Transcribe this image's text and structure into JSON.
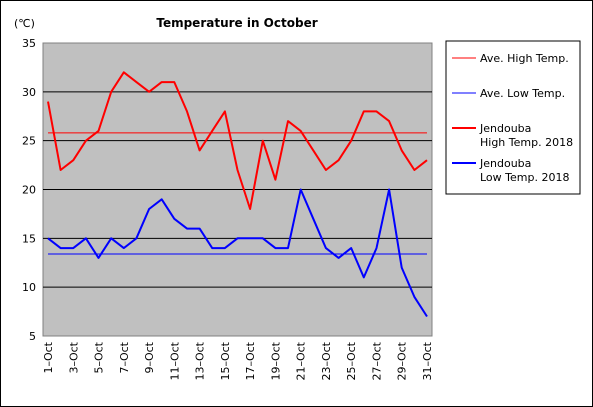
{
  "chart_data": {
    "type": "line",
    "title": "Temperature in October",
    "unit_label": "(℃)",
    "ylim": [
      5,
      35
    ],
    "y_ticks": [
      "5",
      "10",
      "15",
      "20",
      "25",
      "30",
      "35"
    ],
    "x_ticks": [
      "1–Oct",
      "3–Oct",
      "5–Oct",
      "7–Oct",
      "9–Oct",
      "11–Oct",
      "13–Oct",
      "15–Oct",
      "17–Oct",
      "19–Oct",
      "21–Oct",
      "23–Oct",
      "25–Oct",
      "27–Oct",
      "29–Oct",
      "31–Oct"
    ],
    "x_tick_days": [
      1,
      3,
      5,
      7,
      9,
      11,
      13,
      15,
      17,
      19,
      21,
      23,
      25,
      27,
      29,
      31
    ],
    "days": [
      1,
      2,
      3,
      4,
      5,
      6,
      7,
      8,
      9,
      10,
      11,
      12,
      13,
      14,
      15,
      16,
      17,
      18,
      19,
      20,
      21,
      22,
      23,
      24,
      25,
      26,
      27,
      28,
      29,
      30,
      31
    ],
    "grid": "horizontal",
    "plot_background": "#c0c0c0",
    "legend_position": "right",
    "series": [
      {
        "name": "Ave. High Temp.",
        "color": "#ff0000",
        "width": 1,
        "values": [
          25.8,
          25.8,
          25.8,
          25.8,
          25.8,
          25.8,
          25.8,
          25.8,
          25.8,
          25.8,
          25.8,
          25.8,
          25.8,
          25.8,
          25.8,
          25.8,
          25.8,
          25.8,
          25.8,
          25.8,
          25.8,
          25.8,
          25.8,
          25.8,
          25.8,
          25.8,
          25.8,
          25.8,
          25.8,
          25.8,
          25.8
        ]
      },
      {
        "name": "Ave. Low Temp.",
        "color": "#0000ff",
        "width": 1,
        "values": [
          13.4,
          13.4,
          13.4,
          13.4,
          13.4,
          13.4,
          13.4,
          13.4,
          13.4,
          13.4,
          13.4,
          13.4,
          13.4,
          13.4,
          13.4,
          13.4,
          13.4,
          13.4,
          13.4,
          13.4,
          13.4,
          13.4,
          13.4,
          13.4,
          13.4,
          13.4,
          13.4,
          13.4,
          13.4,
          13.4,
          13.4
        ]
      },
      {
        "name": "Jendouba High Temp. 2018",
        "legend_lines": [
          "Jendouba",
          "High Temp. 2018"
        ],
        "color": "#ff0000",
        "width": 2,
        "values": [
          29,
          22,
          23,
          25,
          26,
          30,
          32,
          31,
          30,
          31,
          31,
          28,
          24,
          26,
          28,
          22,
          18,
          25,
          21,
          27,
          26,
          24,
          22,
          23,
          25,
          28,
          28,
          27,
          24,
          22,
          23
        ]
      },
      {
        "name": "Jendouba Low Temp. 2018",
        "legend_lines": [
          "Jendouba",
          "Low Temp. 2018"
        ],
        "color": "#0000ff",
        "width": 2,
        "values": [
          15,
          14,
          14,
          15,
          13,
          15,
          14,
          15,
          18,
          19,
          17,
          16,
          16,
          14,
          14,
          15,
          15,
          15,
          14,
          14,
          20,
          17,
          14,
          13,
          14,
          11,
          14,
          20,
          12,
          9,
          7
        ]
      }
    ]
  }
}
